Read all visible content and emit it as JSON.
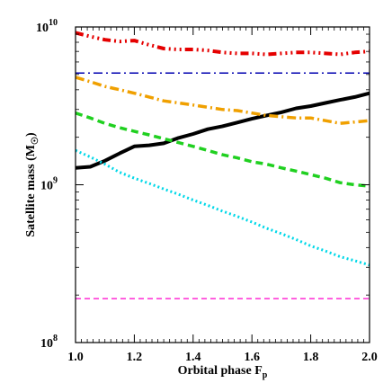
{
  "chart_data": {
    "type": "line",
    "xlabel": "Orbital phase F",
    "xlabel_sub": "p",
    "ylabel": "Satellite mass (M",
    "ylabel_sun": "☉",
    "ylabel_close": ")",
    "xlim": [
      1.0,
      2.0
    ],
    "ylim": [
      100000000.0,
      10000000000.0
    ],
    "yscale": "log",
    "grid": false,
    "legend": "none",
    "x_ticks": [
      "1.0",
      "1.2",
      "1.4",
      "1.6",
      "1.8",
      "2.0"
    ],
    "y_ticks": [
      {
        "base": "10",
        "exp": "8",
        "value": 100000000.0
      },
      {
        "base": "10",
        "exp": "9",
        "value": 1000000000.0
      },
      {
        "base": "10",
        "exp": "10",
        "value": 10000000000.0
      }
    ],
    "x": [
      1.0,
      1.05,
      1.1,
      1.15,
      1.2,
      1.25,
      1.3,
      1.35,
      1.4,
      1.45,
      1.5,
      1.55,
      1.6,
      1.65,
      1.7,
      1.75,
      1.8,
      1.85,
      1.9,
      1.95,
      2.0
    ],
    "series": [
      {
        "color": "#000000",
        "dash": "solid",
        "width": 4.0,
        "values": [
          1280000000.0,
          1300000000.0,
          1420000000.0,
          1580000000.0,
          1750000000.0,
          1780000000.0,
          1830000000.0,
          1980000000.0,
          2100000000.0,
          2250000000.0,
          2350000000.0,
          2480000000.0,
          2620000000.0,
          2750000000.0,
          2880000000.0,
          3050000000.0,
          3150000000.0,
          3300000000.0,
          3450000000.0,
          3600000000.0,
          3800000000.0
        ]
      },
      {
        "color": "#e50000",
        "dash": "dashdot3",
        "width": 4.0,
        "values": [
          9200000000.0,
          8700000000.0,
          8300000000.0,
          8100000000.0,
          8200000000.0,
          7700000000.0,
          7300000000.0,
          7200000000.0,
          7200000000.0,
          7100000000.0,
          6900000000.0,
          6800000000.0,
          6800000000.0,
          6700000000.0,
          6800000000.0,
          6900000000.0,
          6900000000.0,
          6800000000.0,
          6700000000.0,
          6900000000.0,
          7000000000.0
        ]
      },
      {
        "color": "#0000b0",
        "dash": "dashdot",
        "width": 1.5,
        "values": [
          5100000000.0,
          5100000000.0,
          5100000000.0,
          5100000000.0,
          5100000000.0,
          5100000000.0,
          5100000000.0,
          5100000000.0,
          5100000000.0,
          5100000000.0,
          5100000000.0,
          5100000000.0,
          5100000000.0,
          5100000000.0,
          5100000000.0,
          5100000000.0,
          5100000000.0,
          5100000000.0,
          5100000000.0,
          5100000000.0,
          5100000000.0
        ]
      },
      {
        "color": "#f0a000",
        "dash": "dashdot",
        "width": 3.5,
        "values": [
          4800000000.0,
          4500000000.0,
          4200000000.0,
          4000000000.0,
          3800000000.0,
          3600000000.0,
          3400000000.0,
          3300000000.0,
          3200000000.0,
          3100000000.0,
          3000000000.0,
          2950000000.0,
          2850000000.0,
          2750000000.0,
          2700000000.0,
          2650000000.0,
          2650000000.0,
          2550000000.0,
          2450000000.0,
          2500000000.0,
          2550000000.0
        ]
      },
      {
        "color": "#20d020",
        "dash": "dashed",
        "width": 3.5,
        "values": [
          2850000000.0,
          2650000000.0,
          2450000000.0,
          2300000000.0,
          2180000000.0,
          2070000000.0,
          1960000000.0,
          1850000000.0,
          1750000000.0,
          1650000000.0,
          1550000000.0,
          1480000000.0,
          1400000000.0,
          1350000000.0,
          1280000000.0,
          1220000000.0,
          1160000000.0,
          1100000000.0,
          1030000000.0,
          1000000000.0,
          980000000.0
        ]
      },
      {
        "color": "#00d8e8",
        "dash": "dotted",
        "width": 3.0,
        "values": [
          1650000000.0,
          1500000000.0,
          1350000000.0,
          1200000000.0,
          1100000000.0,
          1020000000.0,
          940000000.0,
          870000000.0,
          800000000.0,
          740000000.0,
          680000000.0,
          630000000.0,
          580000000.0,
          530000000.0,
          490000000.0,
          450000000.0,
          410000000.0,
          380000000.0,
          350000000.0,
          330000000.0,
          310000000.0
        ]
      },
      {
        "color": "#ff00cc",
        "dash": "dashed-thin",
        "width": 1.3,
        "values": [
          190000000.0,
          190000000.0,
          190000000.0,
          190000000.0,
          190000000.0,
          190000000.0,
          190000000.0,
          190000000.0,
          190000000.0,
          190000000.0,
          190000000.0,
          190000000.0,
          190000000.0,
          190000000.0,
          190000000.0,
          190000000.0,
          190000000.0,
          190000000.0,
          190000000.0,
          190000000.0,
          190000000.0
        ]
      }
    ]
  }
}
